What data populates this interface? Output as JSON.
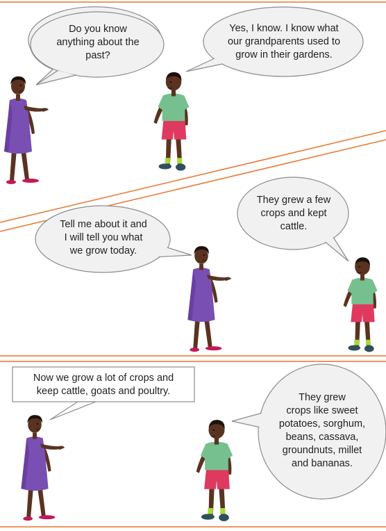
{
  "panels": [
    {
      "left_speech": "Do you know\nanything about the\npast?",
      "right_speech": "Yes, I know. I know what\nour grandparents used to\ngrow in their gardens."
    },
    {
      "left_speech": "Tell me about it and\nI will tell you what\nwe grow today.",
      "right_speech": "They grew a few\ncrops and kept\ncattle."
    },
    {
      "left_speech": "Now we grow a lot of crops and\nkeep cattle, goats and poultry.",
      "right_speech": "They grew\ncrops like sweet\npotatoes, sorghum,\nbeans, cassava,\ngroundnuts, millet\nand bananas."
    }
  ],
  "colors": {
    "panel_border": "#e8742c",
    "bubble_fill": "#f1f1f1",
    "bubble_stroke": "#8c8c8c",
    "girl_dress": "#7a4fb3",
    "boy_shirt": "#76c08f",
    "boy_shorts": "#e0395f",
    "skin": "#5a3320",
    "hair": "#1c120c"
  }
}
